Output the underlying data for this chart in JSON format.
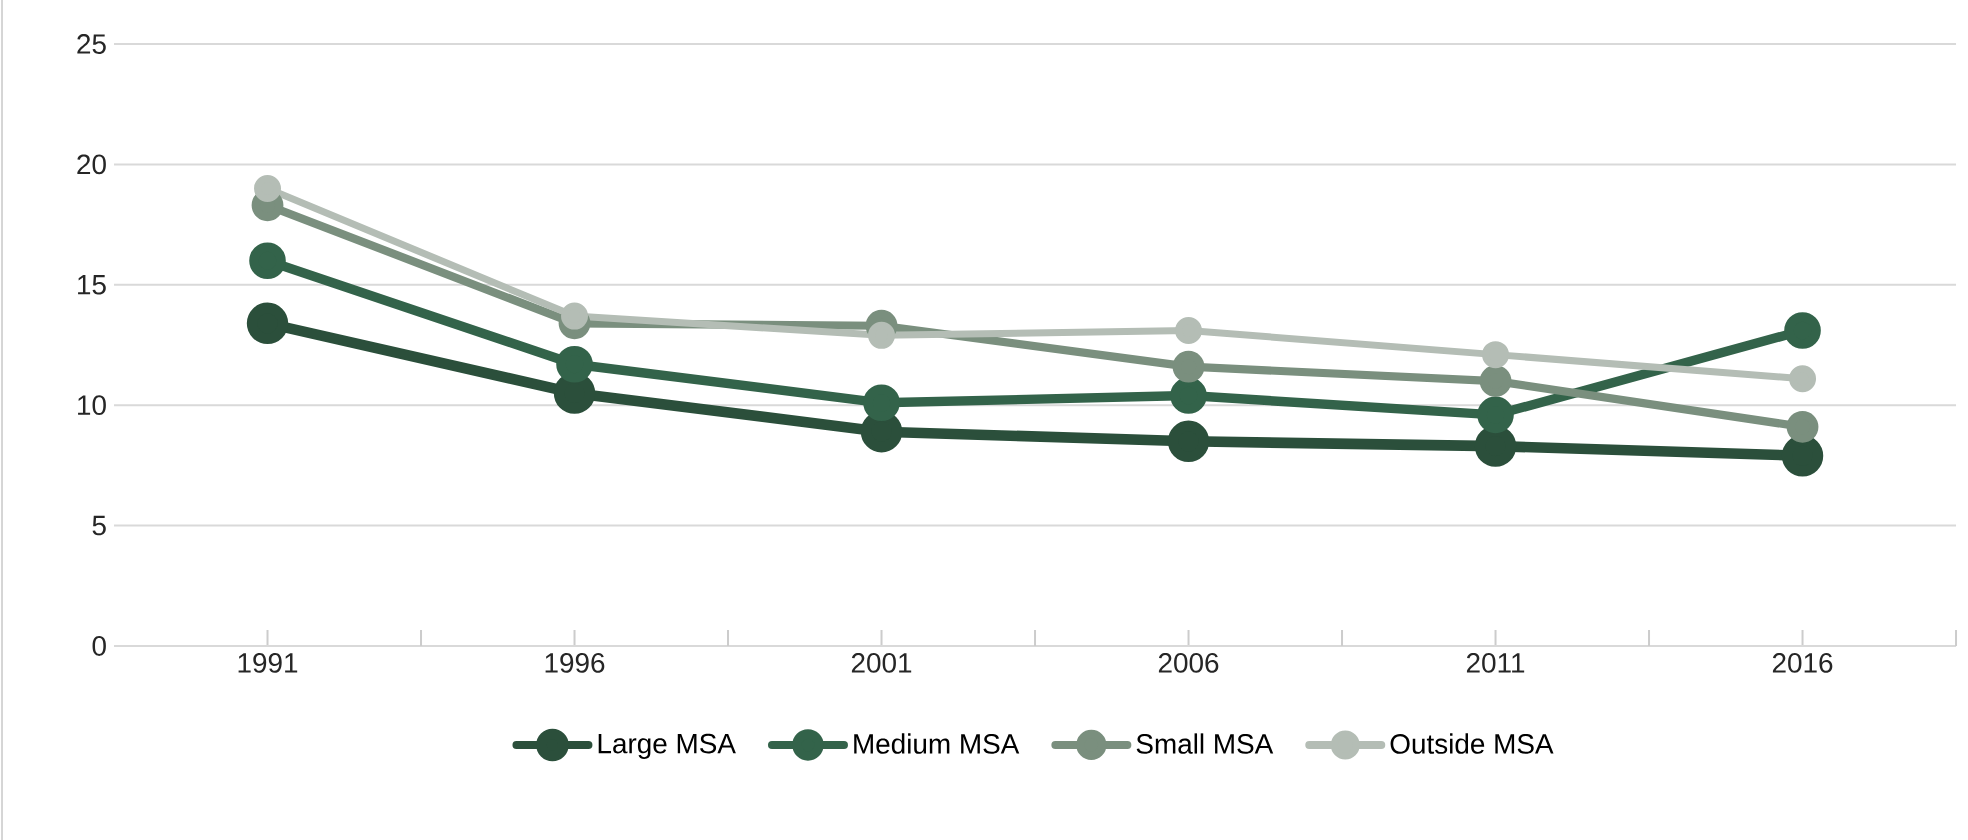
{
  "chart_data": {
    "type": "line",
    "categories": [
      "1991",
      "1996",
      "2001",
      "2006",
      "2011",
      "2016"
    ],
    "series": [
      {
        "name": "Large MSA",
        "color": "#2b4f3b",
        "values": [
          13.4,
          10.5,
          8.9,
          8.5,
          8.3,
          7.9
        ]
      },
      {
        "name": "Medium MSA",
        "color": "#33634a",
        "values": [
          16.0,
          11.7,
          10.1,
          10.4,
          9.6,
          13.1
        ]
      },
      {
        "name": "Small MSA",
        "color": "#7a8f7e",
        "values": [
          18.3,
          13.4,
          13.3,
          11.6,
          11.0,
          9.1
        ]
      },
      {
        "name": "Outside MSA",
        "color": "#b4bdb5",
        "values": [
          19.0,
          13.7,
          12.9,
          13.1,
          12.1,
          11.1
        ]
      }
    ],
    "ylim": [
      0,
      25
    ],
    "yticks": [
      0,
      5,
      10,
      15,
      20,
      25
    ],
    "grid": "y",
    "legend": "bottom",
    "marker": "circle",
    "line_style": "solid"
  }
}
